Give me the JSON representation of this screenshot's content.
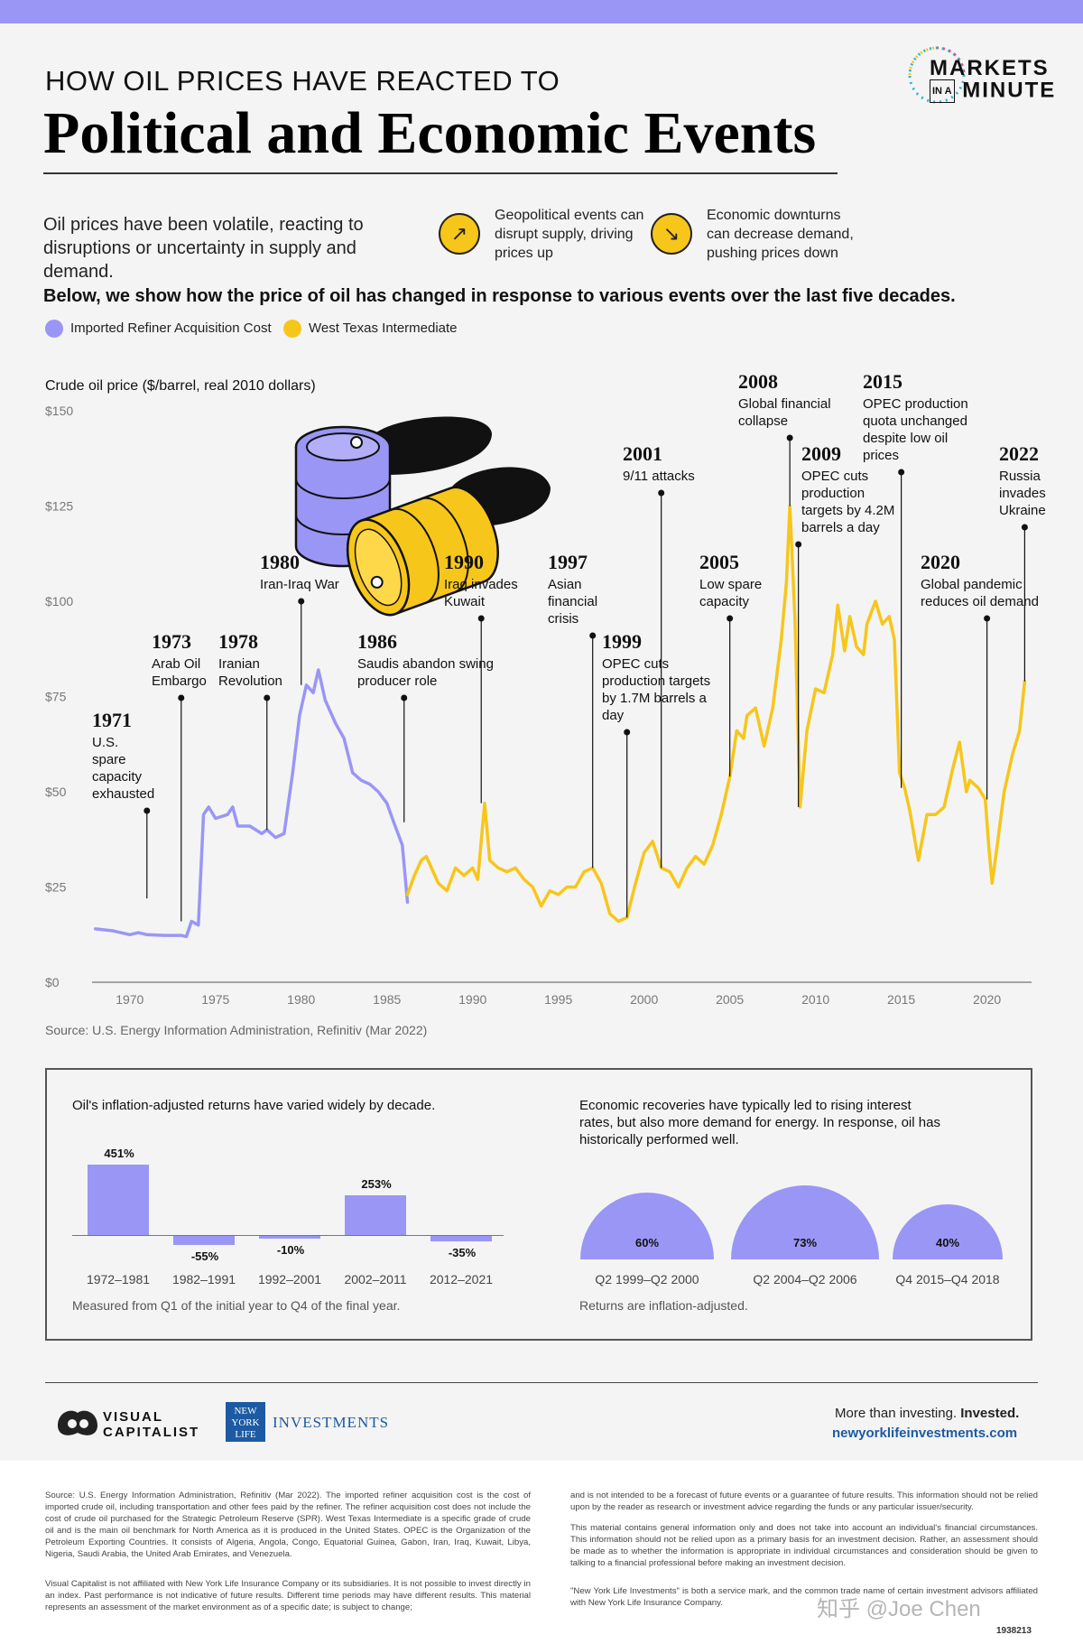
{
  "header": {
    "kicker": "HOW OIL PRICES HAVE REACTED TO",
    "title": "Political and Economic Events",
    "brand_line1": "MARKETS",
    "brand_small": "IN A",
    "brand_line2": "MINUTE"
  },
  "intro": {
    "text": "Oil prices have been volatile, reacting to disruptions or uncertainty in supply and demand.",
    "feature1": "Geopolitical events can disrupt supply, driving prices up",
    "feature2": "Economic downturns can decrease demand, pushing prices down",
    "lede": "Below, we show how the price of oil has changed in response to various events over the last five decades."
  },
  "legend": {
    "series1": "Imported Refiner Acquisition Cost",
    "series2": "West Texas Intermediate"
  },
  "colors": {
    "purple": "#9a96f5",
    "yellow": "#f7c61b",
    "dark": "#111111"
  },
  "chart_data": [
    {
      "type": "line",
      "title": "Crude oil price ($/barrel, real 2010 dollars)",
      "xlabel": "",
      "ylabel": "Crude oil price ($/barrel, real 2010 dollars)",
      "xlim": [
        1967.8,
        2022.6
      ],
      "ylim": [
        0,
        150
      ],
      "x_ticks": [
        1970,
        1975,
        1980,
        1985,
        1990,
        1995,
        2000,
        2005,
        2010,
        2015,
        2020
      ],
      "y_ticks": [
        0,
        25,
        50,
        75,
        100,
        125,
        150
      ],
      "y_tick_labels": [
        "$0",
        "$25",
        "$50",
        "$75",
        "$100",
        "$125",
        "$150"
      ],
      "series": [
        {
          "name": "Imported Refiner Acquisition Cost",
          "color": "#9a96f5",
          "points": [
            [
              1968,
              14
            ],
            [
              1969,
              13.5
            ],
            [
              1970,
              12.5
            ],
            [
              1970.5,
              13
            ],
            [
              1971,
              12.5
            ],
            [
              1972,
              12.3
            ],
            [
              1973,
              12.3
            ],
            [
              1973.3,
              12
            ],
            [
              1973.6,
              16
            ],
            [
              1974,
              15
            ],
            [
              1974.3,
              44
            ],
            [
              1974.6,
              46
            ],
            [
              1975,
              43
            ],
            [
              1975.7,
              44
            ],
            [
              1976,
              46
            ],
            [
              1976.3,
              41
            ],
            [
              1977,
              41
            ],
            [
              1977.7,
              39
            ],
            [
              1978,
              40
            ],
            [
              1978.5,
              38
            ],
            [
              1979,
              39
            ],
            [
              1979.5,
              55
            ],
            [
              1979.9,
              70
            ],
            [
              1980.3,
              78
            ],
            [
              1980.7,
              76
            ],
            [
              1981,
              82
            ],
            [
              1981.4,
              74
            ],
            [
              1982,
              68
            ],
            [
              1982.5,
              64
            ],
            [
              1983,
              55
            ],
            [
              1983.5,
              53
            ],
            [
              1984,
              52
            ],
            [
              1984.5,
              50
            ],
            [
              1985,
              47
            ],
            [
              1985.4,
              42
            ],
            [
              1985.9,
              36
            ],
            [
              1986.2,
              21
            ]
          ]
        },
        {
          "name": "West Texas Intermediate",
          "color": "#f7c61b",
          "points": [
            [
              1986.2,
              23
            ],
            [
              1986.6,
              28
            ],
            [
              1987,
              32
            ],
            [
              1987.3,
              33
            ],
            [
              1987.7,
              29
            ],
            [
              1988,
              26
            ],
            [
              1988.5,
              24
            ],
            [
              1989,
              30
            ],
            [
              1989.5,
              28
            ],
            [
              1990,
              30
            ],
            [
              1990.3,
              27
            ],
            [
              1990.7,
              47
            ],
            [
              1991,
              32
            ],
            [
              1991.5,
              30
            ],
            [
              1992,
              29
            ],
            [
              1992.5,
              30
            ],
            [
              1993,
              27
            ],
            [
              1993.5,
              25
            ],
            [
              1994,
              20
            ],
            [
              1994.5,
              24
            ],
            [
              1995,
              23
            ],
            [
              1995.5,
              25
            ],
            [
              1996,
              25
            ],
            [
              1996.5,
              29
            ],
            [
              1997,
              30
            ],
            [
              1997.5,
              26
            ],
            [
              1998,
              18
            ],
            [
              1998.5,
              16
            ],
            [
              1999,
              17
            ],
            [
              1999.5,
              26
            ],
            [
              2000,
              34
            ],
            [
              2000.5,
              37
            ],
            [
              2001,
              30
            ],
            [
              2001.5,
              29
            ],
            [
              2002,
              25
            ],
            [
              2002.5,
              30
            ],
            [
              2003,
              33
            ],
            [
              2003.5,
              31
            ],
            [
              2004,
              36
            ],
            [
              2004.5,
              44
            ],
            [
              2005,
              54
            ],
            [
              2005.4,
              66
            ],
            [
              2005.8,
              64
            ],
            [
              2006,
              70
            ],
            [
              2006.5,
              72
            ],
            [
              2007,
              62
            ],
            [
              2007.5,
              72
            ],
            [
              2008,
              90
            ],
            [
              2008.3,
              105
            ],
            [
              2008.5,
              125
            ],
            [
              2008.8,
              95
            ],
            [
              2009.1,
              46
            ],
            [
              2009.5,
              66
            ],
            [
              2010,
              77
            ],
            [
              2010.5,
              76
            ],
            [
              2011,
              86
            ],
            [
              2011.3,
              99
            ],
            [
              2011.7,
              87
            ],
            [
              2012,
              96
            ],
            [
              2012.4,
              88
            ],
            [
              2012.8,
              86
            ],
            [
              2013,
              94
            ],
            [
              2013.5,
              100
            ],
            [
              2013.9,
              94
            ],
            [
              2014.3,
              96
            ],
            [
              2014.6,
              90
            ],
            [
              2014.9,
              55
            ],
            [
              2015.2,
              51
            ],
            [
              2015.5,
              45
            ],
            [
              2016,
              32
            ],
            [
              2016.5,
              44
            ],
            [
              2017,
              44
            ],
            [
              2017.5,
              46
            ],
            [
              2018,
              56
            ],
            [
              2018.4,
              63
            ],
            [
              2018.8,
              50
            ],
            [
              2019,
              53
            ],
            [
              2019.5,
              51
            ],
            [
              2019.9,
              48
            ],
            [
              2020.1,
              36
            ],
            [
              2020.3,
              26
            ],
            [
              2020.6,
              36
            ],
            [
              2021,
              50
            ],
            [
              2021.5,
              60
            ],
            [
              2021.9,
              66
            ],
            [
              2022.2,
              79
            ]
          ]
        }
      ],
      "events": [
        {
          "year": "1971",
          "label": "U.S. spare capacity exhausted"
        },
        {
          "year": "1973",
          "label": "Arab Oil Embargo"
        },
        {
          "year": "1978",
          "label": "Iranian Revolution"
        },
        {
          "year": "1980",
          "label": "Iran-Iraq War"
        },
        {
          "year": "1986",
          "label": "Saudis abandon swing producer role"
        },
        {
          "year": "1990",
          "label": "Iraq invades Kuwait"
        },
        {
          "year": "1997",
          "label": "Asian financial crisis"
        },
        {
          "year": "1999",
          "label": "OPEC cuts production targets by 1.7M barrels a day"
        },
        {
          "year": "2001",
          "label": "9/11 attacks"
        },
        {
          "year": "2005",
          "label": "Low spare capacity"
        },
        {
          "year": "2008",
          "label": "Global financial collapse"
        },
        {
          "year": "2009",
          "label": "OPEC cuts production targets by 4.2M barrels a day"
        },
        {
          "year": "2015",
          "label": "OPEC production quota unchanged despite low oil prices"
        },
        {
          "year": "2020",
          "label": "Global pandemic reduces oil demand"
        },
        {
          "year": "2022",
          "label": "Russia invades Ukraine"
        }
      ]
    },
    {
      "type": "bar",
      "title": "Oil's inflation-adjusted returns have varied widely by decade.",
      "categories": [
        "1972–1981",
        "1982–1991",
        "1992–2001",
        "2002–2011",
        "2012–2021"
      ],
      "values": [
        451,
        -55,
        -10,
        253,
        -35
      ],
      "value_labels": [
        "451%",
        "-55%",
        "-10%",
        "253%",
        "-35%"
      ],
      "note": "Measured from Q1 of the initial year to Q4 of the final year."
    },
    {
      "type": "bar",
      "title": "Economic recoveries have typically led to rising interest rates, but also more demand for energy. In response, oil has historically performed well.",
      "categories": [
        "Q2 1999–Q2 2000",
        "Q2 2004–Q2 2006",
        "Q4 2015–Q4 2018"
      ],
      "values": [
        60,
        73,
        40
      ],
      "value_labels": [
        "60%",
        "73%",
        "40%"
      ],
      "note": "Returns are inflation-adjusted."
    }
  ],
  "source": "Source: U.S. Energy Information Administration, Refinitiv (Mar 2022)",
  "footer": {
    "vc_line1": "VISUAL",
    "vc_line2": "CAPITALIST",
    "nyl_logo": "NEW YORK LIFE",
    "nyl_text": "INVESTMENTS",
    "tagline_a": "More than investing. ",
    "tagline_b": "Invested.",
    "url": "newyorklifeinvestments.com"
  },
  "disclaimer": {
    "p1": "Source: U.S. Energy Information Administration, Refinitiv (Mar 2022). The imported refiner acquisition cost is the cost of imported crude oil, including transportation and other fees paid by the refiner. The refiner acquisition cost does not include the cost of crude oil purchased for the Strategic Petroleum Reserve (SPR). West Texas Intermediate is a specific grade of crude oil and is the main oil benchmark for North America as it is produced in the United States. OPEC is the Organization of the Petroleum Exporting Countries. It consists of Algeria, Angola, Congo, Equatorial Guinea, Gabon, Iran, Iraq, Kuwait, Libya, Nigeria, Saudi Arabia, the United Arab Emirates, and Venezuela.",
    "p2": "Visual Capitalist is not affiliated with New York Life Insurance Company or its subsidiaries. It is not possible to invest directly in an index. Past performance is not indicative of future results. Different time periods may have different results. This material represents an assessment of the market environment as of a specific date; is subject to change;",
    "p3": "and is not intended to be a forecast of future events or a guarantee of future results. This information should not be relied upon by the reader as research or investment advice regarding the funds or any particular issuer/security.",
    "p4": "This material contains general information only and does not take into account an individual's financial circumstances. This information should not be relied upon as a primary basis for an investment decision. Rather, an assessment should be made as to whether the information is appropriate in individual circumstances and consideration should be given to talking to a financial professional before making an investment decision.",
    "p5": "\"New York Life Investments\" is both a service mark, and the common trade name of certain investment advisors affiliated with New York Life Insurance Company.",
    "watermark": "知乎 @Joe Chen",
    "code": "1938213"
  }
}
